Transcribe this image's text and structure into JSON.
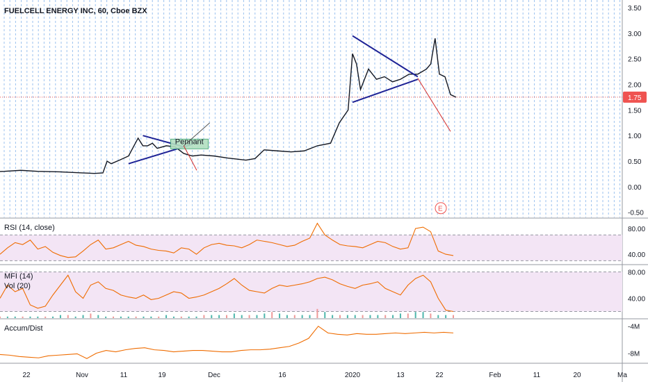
{
  "header": {
    "title": "FUELCELL ENERGY INC, 60, Cboe BZX"
  },
  "colors": {
    "price": "#131722",
    "trendline": "#1e2396",
    "target_arrow": "#d32f2f",
    "rsi_line": "#ef6c00",
    "band_fill": "#f3e5f5",
    "volume_up": "#4db6ac",
    "volume_down": "#ef9a9a",
    "grid": "#4a90e2",
    "current_price": "#ef5350"
  },
  "chart_data": [
    {
      "type": "line",
      "name": "price",
      "ylim": [
        -0.6,
        3.65
      ],
      "y_ticks": [
        "-0.50",
        "0.00",
        "0.50",
        "1.00",
        "1.50",
        "2.00",
        "2.50",
        "3.00",
        "3.50"
      ],
      "x_ticks": [
        "22",
        "Nov",
        "11",
        "19",
        "Dec",
        "16",
        "2020",
        "13",
        "22",
        "Feb",
        "11",
        "20",
        "Ma"
      ],
      "x_values": [
        "Oct 22",
        "Nov 1",
        "Nov 11",
        "Nov 19",
        "Dec 1",
        "Dec 16",
        "Jan 1",
        "Jan 13",
        "Jan 22",
        "Feb 1",
        "Feb 11",
        "Feb 20",
        "Mar 1"
      ],
      "series": [
        {
          "points": [
            [
              "Oct 15",
              0.29
            ],
            [
              "Oct 18",
              0.3
            ],
            [
              "Oct 21",
              0.32
            ],
            [
              "Oct 24",
              0.3
            ],
            [
              "Oct 28",
              0.29
            ],
            [
              "Nov 1",
              0.27
            ],
            [
              "Nov 4",
              0.26
            ],
            [
              "Nov 6",
              0.27
            ],
            [
              "Nov 7",
              0.5
            ],
            [
              "Nov 8",
              0.45
            ],
            [
              "Nov 10",
              0.52
            ],
            [
              "Nov 12",
              0.6
            ],
            [
              "Nov 14",
              0.95
            ],
            [
              "Nov 15",
              0.8
            ],
            [
              "Nov 16",
              0.8
            ],
            [
              "Nov 17",
              0.85
            ],
            [
              "Nov 18",
              0.75
            ],
            [
              "Nov 20",
              0.8
            ],
            [
              "Nov 22",
              0.78
            ],
            [
              "Nov 24",
              0.65
            ],
            [
              "Nov 26",
              0.6
            ],
            [
              "Nov 28",
              0.62
            ],
            [
              "Dec 1",
              0.6
            ],
            [
              "Dec 4",
              0.56
            ],
            [
              "Dec 8",
              0.52
            ],
            [
              "Dec 10",
              0.55
            ],
            [
              "Dec 12",
              0.72
            ],
            [
              "Dec 15",
              0.7
            ],
            [
              "Dec 18",
              0.68
            ],
            [
              "Dec 21",
              0.7
            ],
            [
              "Dec 24",
              0.8
            ],
            [
              "Dec 27",
              0.85
            ],
            [
              "Dec 29",
              1.25
            ],
            [
              "Dec 31",
              1.5
            ],
            [
              "Jan 1",
              2.6
            ],
            [
              "Jan 2",
              2.4
            ],
            [
              "Jan 3",
              1.9
            ],
            [
              "Jan 5",
              2.3
            ],
            [
              "Jan 7",
              2.1
            ],
            [
              "Jan 9",
              2.15
            ],
            [
              "Jan 11",
              2.05
            ],
            [
              "Jan 13",
              2.1
            ],
            [
              "Jan 15",
              2.2
            ],
            [
              "Jan 17",
              2.2
            ],
            [
              "Jan 19",
              2.3
            ],
            [
              "Jan 20",
              2.4
            ],
            [
              "Jan 21",
              2.9
            ],
            [
              "Jan 22",
              2.2
            ],
            [
              "Jan 23",
              2.15
            ],
            [
              "Jan 24",
              1.8
            ],
            [
              "Jan 25",
              1.75
            ]
          ]
        }
      ],
      "current_value": "1.75",
      "annotations": {
        "pennant_text": "Pennant",
        "earnings_marker": "E"
      }
    },
    {
      "type": "line",
      "name": "rsi",
      "title": "RSI (14, close)",
      "ylim": [
        25,
        95
      ],
      "y_ticks": [
        "80.00",
        "40.00"
      ],
      "band": [
        30,
        70
      ],
      "values": [
        40,
        50,
        58,
        55,
        62,
        48,
        52,
        43,
        38,
        35,
        36,
        45,
        55,
        62,
        48,
        50,
        55,
        60,
        54,
        52,
        48,
        46,
        45,
        42,
        50,
        48,
        40,
        50,
        55,
        57,
        54,
        53,
        50,
        55,
        62,
        60,
        58,
        55,
        52,
        54,
        60,
        65,
        88,
        70,
        62,
        55,
        53,
        52,
        50,
        55,
        60,
        58,
        52,
        48,
        50,
        80,
        82,
        75,
        45,
        40,
        38
      ]
    },
    {
      "type": "line",
      "name": "mfi",
      "title": "MFI (14)",
      "series_labels": [
        "Vol (20)"
      ],
      "ylim": [
        10,
        90
      ],
      "y_ticks": [
        "80.00",
        "40.00"
      ],
      "band": [
        20,
        80
      ],
      "values": [
        40,
        60,
        50,
        55,
        30,
        25,
        28,
        45,
        60,
        75,
        50,
        40,
        60,
        65,
        55,
        52,
        45,
        42,
        40,
        45,
        38,
        40,
        45,
        50,
        48,
        40,
        42,
        45,
        50,
        55,
        62,
        70,
        60,
        52,
        50,
        48,
        55,
        60,
        58,
        60,
        62,
        65,
        70,
        72,
        68,
        62,
        58,
        55,
        60,
        62,
        65,
        55,
        50,
        45,
        60,
        70,
        75,
        65,
        40,
        22,
        20
      ],
      "volume": [
        1,
        1,
        1,
        1,
        1,
        1,
        1,
        1,
        2,
        2,
        1,
        2,
        3,
        2,
        1,
        1,
        1,
        1,
        1,
        1,
        1,
        1,
        2,
        1,
        1,
        1,
        1,
        2,
        2,
        2,
        2,
        3,
        2,
        2,
        2,
        3,
        4,
        3,
        2,
        2,
        2,
        2,
        6,
        4,
        2,
        2,
        2,
        2,
        2,
        2,
        2,
        2,
        2,
        3,
        3,
        4,
        4,
        3,
        2,
        2,
        2
      ]
    },
    {
      "type": "line",
      "name": "accum_dist",
      "title": "Accum/Dist",
      "y_ticks": [
        "-4M",
        "-8M"
      ],
      "values": [
        -8.2,
        -8.3,
        -8.5,
        -8.6,
        -8.7,
        -8.4,
        -8.3,
        -8.2,
        -8.1,
        -8.8,
        -8.0,
        -7.6,
        -7.8,
        -7.5,
        -7.3,
        -7.2,
        -7.5,
        -7.6,
        -7.8,
        -7.7,
        -7.6,
        -7.6,
        -7.7,
        -7.8,
        -7.8,
        -7.6,
        -7.5,
        -7.5,
        -7.4,
        -7.2,
        -7.0,
        -6.5,
        -5.8,
        -4.0,
        -5.0,
        -5.2,
        -5.3,
        -5.1,
        -5.2,
        -5.2,
        -5.1,
        -5.0,
        -5.1,
        -5.0,
        -4.9,
        -5.0,
        -4.9,
        -5.0
      ]
    }
  ]
}
